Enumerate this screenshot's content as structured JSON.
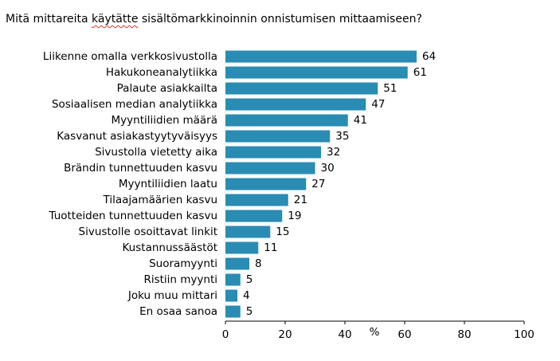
{
  "chart_data": {
    "type": "bar",
    "orientation": "horizontal",
    "title_parts": [
      "Mitä mittareita ",
      "käytätte",
      " sisältömarkkinoinnin onnistumisen mittaamiseen?"
    ],
    "categories": [
      "Liikenne omalla verkkosivustolla",
      "Hakukoneanalytiikka",
      "Palaute asiakkailta",
      "Sosiaalisen  median analytiikka",
      "Myyntiliidien määrä",
      "Kasvanut asiakastyytyväisyys",
      "Sivustolla vietetty aika",
      "Brändin tunnettuuden kasvu",
      "Myyntiliidien laatu",
      "Tilaajamäärien kasvu",
      "Tuotteiden tunnettuuden kasvu",
      "Sivustolle osoittavat linkit",
      "Kustannussäästöt",
      "Suoramyynti",
      "Ristiin myynti",
      "Joku muu mittari",
      "En osaa sanoa"
    ],
    "values": [
      64,
      61,
      51,
      47,
      41,
      35,
      32,
      30,
      27,
      21,
      19,
      15,
      11,
      8,
      5,
      4,
      5
    ],
    "xlim": [
      0,
      100
    ],
    "xticks": [
      "0",
      "20",
      "40",
      "60",
      "80",
      "100"
    ],
    "xlabel": "%",
    "bar_color": "#2a8bb3",
    "grid": false
  }
}
